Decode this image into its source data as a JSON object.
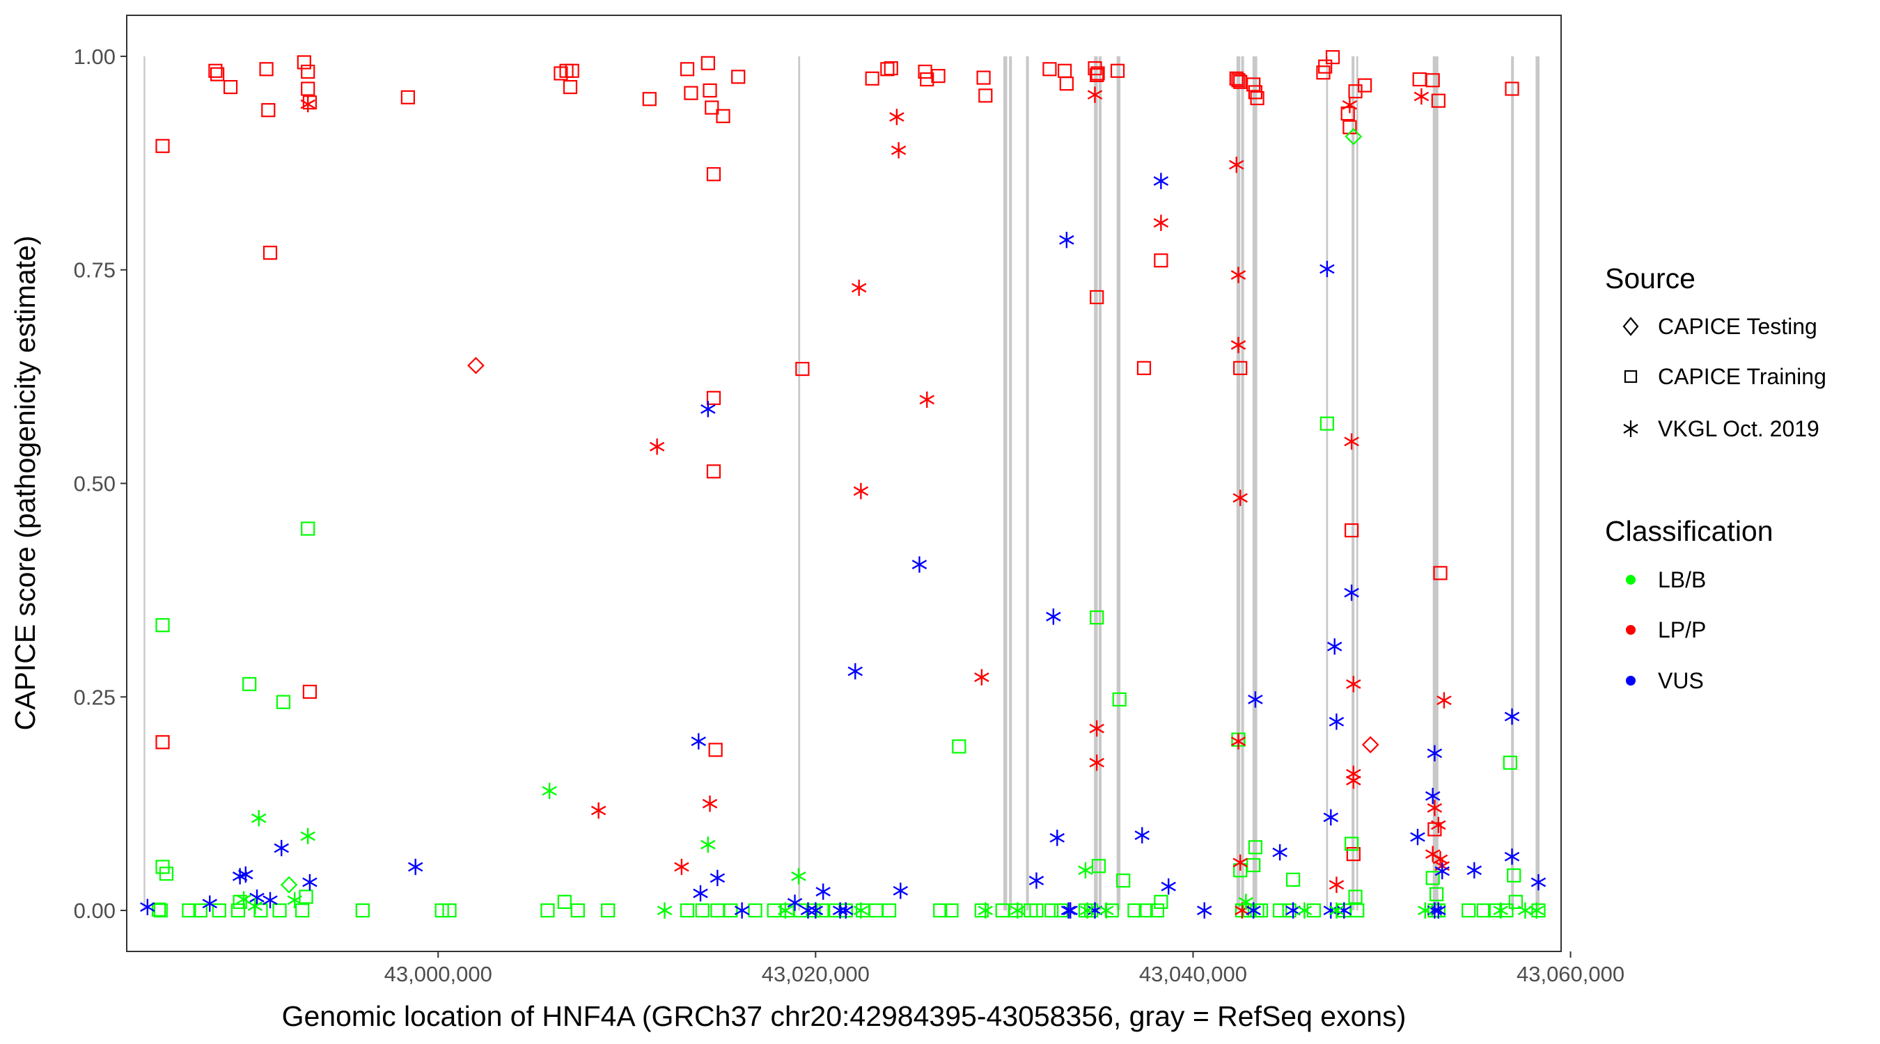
{
  "chart_data": {
    "type": "scatter",
    "title": "",
    "xlabel": "Genomic location of HNF4A (GRCh37 chr20:42984395-43058356, gray = RefSeq exons)",
    "ylabel": "CAPICE score (pathogenicity estimate)",
    "xlim": [
      42983500,
      43059500
    ],
    "ylim": [
      -0.048,
      1.048
    ],
    "x_ticks": [
      43000000,
      43020000,
      43040000,
      43060000
    ],
    "x_tick_labels": [
      "43,000,000",
      "43,020,000",
      "43,040,000",
      "43,060,000"
    ],
    "y_ticks": [
      0,
      0.25,
      0.5,
      0.75,
      1
    ],
    "y_tick_labels": [
      "0.00",
      "0.25",
      "0.50",
      "0.75",
      "1.00"
    ],
    "grid": false,
    "exons": [
      [
        42984395,
        42984480
      ],
      [
        43019080,
        43019180
      ],
      [
        43029950,
        43030150
      ],
      [
        43030250,
        43030400
      ],
      [
        43031150,
        43031300
      ],
      [
        43034750,
        43034950
      ],
      [
        43035000,
        43035150
      ],
      [
        43035950,
        43036150
      ],
      [
        43042300,
        43042500
      ],
      [
        43042550,
        43042700
      ],
      [
        43043150,
        43043400
      ],
      [
        43047050,
        43047150
      ],
      [
        43048400,
        43048550
      ],
      [
        43048650,
        43048750
      ],
      [
        43052700,
        43053000
      ],
      [
        43056850,
        43057000
      ],
      [
        43058150,
        43058356
      ]
    ],
    "legend": {
      "position": "right",
      "source_title": "Source",
      "source": [
        {
          "label": "CAPICE Testing",
          "shape": "diamond"
        },
        {
          "label": "CAPICE Training",
          "shape": "square"
        },
        {
          "label": "VKGL Oct. 2019",
          "shape": "asterisk"
        }
      ],
      "classification_title": "Classification",
      "classification": [
        {
          "label": "LB/B",
          "color": "#00ff00"
        },
        {
          "label": "LP/P",
          "color": "#ff0000"
        },
        {
          "label": "VUS",
          "color": "#0000ff"
        }
      ]
    },
    "series": [
      {
        "name": "CAPICE Training LP/P",
        "shape": "square",
        "color": "#ff0000",
        "x": [
          42985400,
          42985400,
          42988200,
          42988300,
          42989000,
          42990900,
          42991000,
          42991100,
          42992900,
          42993100,
          42993100,
          42993200,
          42993200,
          42998400,
          43006500,
          43006800,
          43007000,
          43007100,
          43011200,
          43013200,
          43013400,
          43014300,
          43014400,
          43014500,
          43014600,
          43014600,
          43014600,
          43014700,
          43015100,
          43015900,
          43019300,
          43023000,
          43023800,
          43024000,
          43025800,
          43025900,
          43026500,
          43028900,
          43029000,
          43032400,
          43033200,
          43033300,
          43034800,
          43034900,
          43034900,
          43034950,
          43036000,
          43037400,
          43038300,
          43042300,
          43042400,
          43042500,
          43042500,
          43043200,
          43043300,
          43043400,
          43046900,
          43047000,
          43047400,
          43048200,
          43048300,
          43048400,
          43048500,
          43048600,
          43049100,
          43052000,
          43052700,
          43052800,
          43053000,
          43053100,
          43056900
        ],
        "y": [
          0.895,
          0.197,
          0.983,
          0.979,
          0.964,
          0.985,
          0.937,
          0.77,
          0.993,
          0.982,
          0.962,
          0.946,
          0.256,
          0.952,
          0.98,
          0.983,
          0.964,
          0.983,
          0.95,
          0.985,
          0.957,
          0.992,
          0.96,
          0.94,
          0.862,
          0.6,
          0.514,
          0.188,
          0.93,
          0.976,
          0.634,
          0.974,
          0.985,
          0.986,
          0.982,
          0.973,
          0.977,
          0.975,
          0.954,
          0.985,
          0.983,
          0.968,
          0.986,
          0.978,
          0.718,
          0.98,
          0.983,
          0.635,
          0.761,
          0.974,
          0.972,
          0.97,
          0.635,
          0.967,
          0.958,
          0.951,
          0.981,
          0.988,
          0.999,
          0.933,
          0.917,
          0.445,
          0.066,
          0.959,
          0.966,
          0.973,
          0.972,
          0.095,
          0.948,
          0.395,
          0.962
        ],
        "size": 18
      },
      {
        "name": "CAPICE Training LB/B",
        "shape": "square",
        "color": "#00ff00",
        "x": [
          42985200,
          42985300,
          42985400,
          42985400,
          42985600,
          42989500,
          42990000,
          42991800,
          42993100,
          42993000,
          42986800,
          42987400,
          42988400,
          42989400,
          42990600,
          42991600,
          42992800,
          42996000,
          43000200,
          43000600,
          43005800,
          43006700,
          43007400,
          43009000,
          43013200,
          43014000,
          43014800,
          43015500,
          43016800,
          43017800,
          43018500,
          43019200,
          43019900,
          43020400,
          43021000,
          43021600,
          43022500,
          43023200,
          43023900,
          43026600,
          43027200,
          43027600,
          43028800,
          43029900,
          43030600,
          43031400,
          43031700,
          43032500,
          43033000,
          43034300,
          43034600,
          43034900,
          43035000,
          43035700,
          43036100,
          43036300,
          43036900,
          43037500,
          43038100,
          43038300,
          43042400,
          43042500,
          43042600,
          43043000,
          43043200,
          43043300,
          43043400,
          43043600,
          43044600,
          43045100,
          43045300,
          43046400,
          43047100,
          43048000,
          43048400,
          43048600,
          43048700,
          43052700,
          43052900,
          43052800,
          43053000,
          43054600,
          43055400,
          43056000,
          43056600,
          43056800,
          43057000,
          43057100,
          43058300
        ],
        "y": [
          0.001,
          0.0,
          0.334,
          0.051,
          0.043,
          0.01,
          0.265,
          0.244,
          0.447,
          0.016,
          0.0,
          0.0,
          0.0,
          0.0,
          0.0,
          0.0,
          0.0,
          0.0,
          0.0,
          0.0,
          0.0,
          0.01,
          0.0,
          0.0,
          0.0,
          0.0,
          0.0,
          0.0,
          0.0,
          0.0,
          0.0,
          0.0,
          0.0,
          0.0,
          0.0,
          0.0,
          0.0,
          0.0,
          0.0,
          0.0,
          0.0,
          0.192,
          0.0,
          0.0,
          0.0,
          0.0,
          0.0,
          0.0,
          0.0,
          0.0,
          0.0,
          0.343,
          0.052,
          0.0,
          0.247,
          0.035,
          0.0,
          0.0,
          0.0,
          0.01,
          0.2,
          0.047,
          0.0,
          0.0,
          0.053,
          0.074,
          0.0,
          0.0,
          0.0,
          0.0,
          0.036,
          0.0,
          0.57,
          0.0,
          0.078,
          0.016,
          0.0,
          0.038,
          0.019,
          0.0,
          0.0,
          0.0,
          0.0,
          0.0,
          0.0,
          0.173,
          0.041,
          0.01,
          0.0
        ],
        "size": 18
      },
      {
        "name": "CAPICE Testing",
        "shape": "diamond",
        "color": "mixed",
        "x": [
          43002000,
          42992100,
          43048500,
          43049400
        ],
        "y": [
          0.638,
          0.03,
          0.906,
          0.194
        ],
        "colors": [
          "#ff0000",
          "#00ff00",
          "#00ff00",
          "#ff0000"
        ],
        "size": 16
      },
      {
        "name": "VKGL Oct. 2019 LP/P",
        "shape": "asterisk",
        "color": "#ff0000",
        "x": [
          42993100,
          43008500,
          43011600,
          43012900,
          43014400,
          43022300,
          43022400,
          43024300,
          43024400,
          43025900,
          43028800,
          43034800,
          43034900,
          43034900,
          43038300,
          43042300,
          43042400,
          43042400,
          43042500,
          43042400,
          43042500,
          43042600,
          43047600,
          43048300,
          43048400,
          43048500,
          43048500,
          43048500,
          43052100,
          43052700,
          43052800,
          43053000,
          43053100,
          43053200,
          43053300
        ],
        "y": [
          0.944,
          0.117,
          0.543,
          0.051,
          0.125,
          0.729,
          0.491,
          0.929,
          0.89,
          0.598,
          0.273,
          0.955,
          0.213,
          0.173,
          0.805,
          0.873,
          0.744,
          0.662,
          0.483,
          0.198,
          0.056,
          0.0,
          0.03,
          0.943,
          0.549,
          0.265,
          0.16,
          0.152,
          0.953,
          0.066,
          0.12,
          0.1,
          0.06,
          0.052,
          0.246
        ],
        "size": 18
      },
      {
        "name": "VKGL Oct. 2019 VUS",
        "shape": "asterisk",
        "color": "#0000ff",
        "x": [
          43020000,
          43021600,
          43038300,
          43022100,
          43033300,
          43047100,
          43025500,
          43032600,
          43048400,
          43047500,
          43043300,
          43056900,
          43047600,
          43052800,
          43052700,
          43051900,
          43047300,
          43044600,
          43037300,
          43032800,
          42998800,
          42991700,
          42989800,
          42989500,
          42987900,
          42984600,
          42990400,
          42991100,
          42993200,
          43013800,
          43014300,
          43014800,
          43020400,
          43021300,
          43013900,
          43016100,
          43018900,
          43019600,
          43024500,
          43031700,
          43033500,
          43034800,
          43038700,
          43040600,
          43043200,
          43045300,
          43047300,
          43048000,
          43052800,
          43053000,
          43053200,
          43056900,
          43054900,
          43058300,
          43033400
        ],
        "y": [
          0.0,
          0.0,
          0.854,
          0.28,
          0.785,
          0.751,
          0.405,
          0.344,
          0.372,
          0.309,
          0.247,
          0.227,
          0.221,
          0.184,
          0.134,
          0.086,
          0.109,
          0.068,
          0.088,
          0.085,
          0.051,
          0.073,
          0.042,
          0.04,
          0.008,
          0.004,
          0.015,
          0.012,
          0.033,
          0.198,
          0.587,
          0.038,
          0.022,
          0.0,
          0.02,
          0.0,
          0.009,
          0.0,
          0.023,
          0.035,
          0.0,
          0.0,
          0.028,
          0.0,
          0.0,
          0.0,
          0.0,
          0.0,
          0.0,
          0.0,
          0.046,
          0.063,
          0.047,
          0.033,
          0.0
        ],
        "size": 18
      },
      {
        "name": "VKGL Oct. 2019 LB/B",
        "shape": "asterisk",
        "color": "#00ff00",
        "x": [
          42990500,
          42993100,
          43005900,
          43014300,
          43019100,
          43034300,
          42989700,
          42990300,
          42992400,
          43012000,
          43018400,
          43022400,
          43029000,
          43030700,
          43034400,
          43035400,
          43042800,
          43045900,
          43047600,
          43052300,
          43056300,
          43057600,
          43058200
        ],
        "y": [
          0.108,
          0.087,
          0.14,
          0.077,
          0.04,
          0.047,
          0.013,
          0.005,
          0.012,
          0.0,
          0.0,
          0.0,
          0.0,
          0.0,
          0.0,
          0.0,
          0.01,
          0.0,
          0.0,
          0.0,
          0.0,
          0.0,
          0.0
        ],
        "size": 18
      }
    ]
  }
}
